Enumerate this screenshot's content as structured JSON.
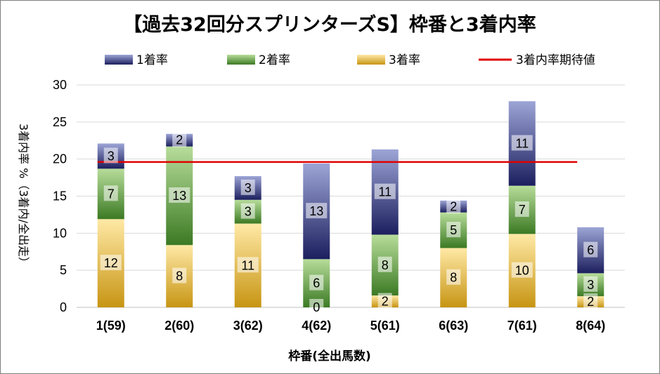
{
  "chart_data": {
    "type": "bar",
    "stacked": true,
    "title": "【過去32回分スプリンターズS】枠番と3着内率",
    "xlabel": "枠番(全出馬数)",
    "ylabel": "3着内率 %（3着内/全出走）",
    "categories": [
      "1(59)",
      "2(60)",
      "3(62)",
      "4(62)",
      "5(61)",
      "6(63)",
      "7(61)",
      "8(64)"
    ],
    "ylim": [
      0,
      30
    ],
    "yticks": [
      0,
      5,
      10,
      15,
      20,
      25,
      30
    ],
    "grid": true,
    "legend_position": "top",
    "series": [
      {
        "name": "3着率",
        "color": "#d9a21b",
        "values": [
          11.9,
          8.4,
          11.3,
          0,
          1.6,
          8.0,
          9.9,
          1.5
        ],
        "labels": [
          "12",
          "8",
          "11",
          "0",
          "2",
          "8",
          "10",
          "2"
        ]
      },
      {
        "name": "2着率",
        "color": "#4f8a34",
        "values": [
          6.8,
          13.3,
          3.2,
          6.5,
          8.2,
          4.8,
          6.5,
          3.1
        ],
        "labels": [
          "7",
          "13",
          "3",
          "6",
          "8",
          "5",
          "7",
          "3"
        ]
      },
      {
        "name": "1着率",
        "color": "#2b2f72",
        "values": [
          3.4,
          1.7,
          3.2,
          12.9,
          11.5,
          1.6,
          11.4,
          6.2
        ],
        "labels": [
          "3",
          "2",
          "3",
          "13",
          "11",
          "2",
          "11",
          "6"
        ]
      }
    ],
    "reference_line": {
      "name": "3着内率期待値",
      "color": "#e00000",
      "value": 19.6
    },
    "legend_order": [
      "1着率",
      "2着率",
      "3着率",
      "3着内率期待値"
    ]
  }
}
